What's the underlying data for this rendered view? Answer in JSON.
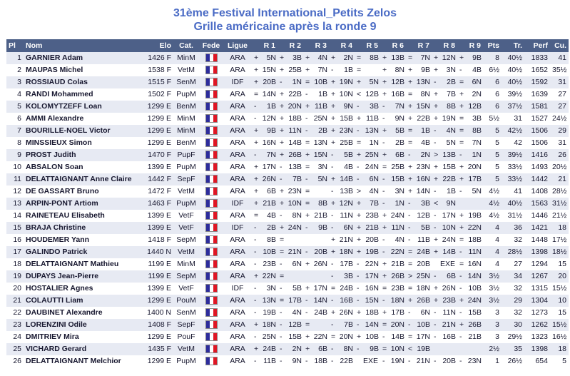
{
  "title": "31ème Festival International_Petits Zelos",
  "subtitle": "Grille américaine après la ronde 9",
  "colors": {
    "title": "#4a6bc5",
    "header_bg": "#4d6088",
    "row_alt": "#e7eaf3",
    "text": "#17172f",
    "flag_blue": "#2d2d9b",
    "flag_red": "#df1624"
  },
  "table": {
    "headers": [
      "Pl",
      "Nom",
      "Elo",
      "Cat.",
      "Fede",
      "Ligue",
      "R 1",
      "R 2",
      "R 3",
      "R 4",
      "R 5",
      "R 6",
      "R 7",
      "R 8",
      "R 9",
      "Pts",
      "Tr.",
      "Perf",
      "Cu."
    ],
    "fede_icon": "france-flag",
    "rows": [
      {
        "pl": "1",
        "nom": "GARNIER Adam",
        "elo": "1426 F",
        "cat": "MinM",
        "ligue": "ARA",
        "rounds": [
          "+5N",
          "+3B",
          "+4N",
          "+2N",
          "=8B",
          "+13B",
          "=7N",
          "+12N",
          "+9B"
        ],
        "pts": "8",
        "tr": "40½",
        "perf": "1833",
        "cu": "41"
      },
      {
        "pl": "2",
        "nom": "MAUPAS Michel",
        "elo": "1538 F",
        "cat": "VetM",
        "ligue": "ARA",
        "rounds": [
          "+15N",
          "+25B",
          "+7N",
          "-1B",
          "=",
          "+8N",
          "+9B",
          "+3N",
          "-4B"
        ],
        "pts": "6½",
        "tr": "40½",
        "perf": "1652",
        "cu": "35½"
      },
      {
        "pl": "3",
        "nom": "ROSSIAUD Colas",
        "elo": "1515 F",
        "cat": "SenM",
        "ligue": "IDF",
        "rounds": [
          "+20B",
          "-1N",
          "=10B",
          "+19N",
          "+5N",
          "+12B",
          "+13N",
          "-2B",
          "=6N"
        ],
        "pts": "6",
        "tr": "40½",
        "perf": "1592",
        "cu": "31"
      },
      {
        "pl": "4",
        "nom": "RANDI Mohammed",
        "elo": "1502 F",
        "cat": "PupM",
        "ligue": "ARA",
        "rounds": [
          "=14N",
          "+22B",
          "-1B",
          "+10N",
          "<12B",
          "+16B",
          "=8N",
          "+7B",
          "+2N"
        ],
        "pts": "6",
        "tr": "39½",
        "perf": "1639",
        "cu": "27"
      },
      {
        "pl": "5",
        "nom": "KOLOMYTZEFF Loan",
        "elo": "1299 E",
        "cat": "BenM",
        "ligue": "ARA",
        "rounds": [
          "-1B",
          "+20N",
          "+11B",
          "+9N",
          "-3B",
          "-7N",
          "+15N",
          "+8B",
          "+12B"
        ],
        "pts": "6",
        "tr": "37½",
        "perf": "1581",
        "cu": "27"
      },
      {
        "pl": "6",
        "nom": "AMMI Alexandre",
        "elo": "1299 E",
        "cat": "MinM",
        "ligue": "ARA",
        "rounds": [
          "-12N",
          "+18B",
          "-25N",
          "+15B",
          "+11B",
          "-9N",
          "+22B",
          "+19N",
          "=3B"
        ],
        "pts": "5½",
        "tr": "31",
        "perf": "1527",
        "cu": "24½"
      },
      {
        "pl": "7",
        "nom": "BOURILLE-NOEL Victor",
        "elo": "1299 E",
        "cat": "MinM",
        "ligue": "ARA",
        "rounds": [
          "+9B",
          "+11N",
          "-2B",
          "+23N",
          "-13N",
          "+5B",
          "=1B",
          "-4N",
          "=8B"
        ],
        "pts": "5",
        "tr": "42½",
        "perf": "1506",
        "cu": "29"
      },
      {
        "pl": "8",
        "nom": "MINSSIEUX Simon",
        "elo": "1299 E",
        "cat": "BenM",
        "ligue": "ARA",
        "rounds": [
          "+16N",
          "+14B",
          "=13N",
          "+25B",
          "=1N",
          "-2B",
          "=4B",
          "-5N",
          "=7N"
        ],
        "pts": "5",
        "tr": "42",
        "perf": "1506",
        "cu": "31"
      },
      {
        "pl": "9",
        "nom": "PROST Judith",
        "elo": "1470 F",
        "cat": "PupF",
        "ligue": "ARA",
        "rounds": [
          "-7N",
          "+26B",
          "+15N",
          "-5B",
          "+25N",
          "+6B",
          "-2N",
          ">13B",
          "-1N"
        ],
        "pts": "5",
        "tr": "39½",
        "perf": "1416",
        "cu": "26"
      },
      {
        "pl": "10",
        "nom": "ABSALON Soan",
        "elo": "1399 E",
        "cat": "PupM",
        "ligue": "ARA",
        "rounds": [
          "+17N",
          "-13B",
          "=3N",
          "-4B",
          "-24N",
          "=25B",
          "+23N",
          "+15B",
          "+20N"
        ],
        "pts": "5",
        "tr": "33½",
        "perf": "1493",
        "cu": "20½"
      },
      {
        "pl": "11",
        "nom": "DELATTAIGNANT Anne Claire",
        "elo": "1442 F",
        "cat": "SepF",
        "ligue": "ARA",
        "rounds": [
          "+26N",
          "-7B",
          "-5N",
          "+14B",
          "-6N",
          "-15B",
          "+16N",
          "+22B",
          "+17B"
        ],
        "pts": "5",
        "tr": "33½",
        "perf": "1442",
        "cu": "21"
      },
      {
        "pl": "12",
        "nom": "DE GASSART Bruno",
        "elo": "1472 F",
        "cat": "VetM",
        "ligue": "ARA",
        "rounds": [
          "+6B",
          "+23N",
          "=",
          "-13B",
          ">4N",
          "-3N",
          "+14N",
          "-1B",
          "-5N"
        ],
        "pts": "4½",
        "tr": "41",
        "perf": "1408",
        "cu": "28½"
      },
      {
        "pl": "13",
        "nom": "ARPIN-PONT Artiom",
        "elo": "1463 F",
        "cat": "PupM",
        "ligue": "IDF",
        "rounds": [
          "+21B",
          "+10N",
          "=8B",
          "+12N",
          "+7B",
          "-1N",
          "-3B",
          "<9N",
          ""
        ],
        "pts": "4½",
        "tr": "40½",
        "perf": "1563",
        "cu": "31½"
      },
      {
        "pl": "14",
        "nom": "RAINETEAU Elisabeth",
        "elo": "1399 E",
        "cat": "VetF",
        "ligue": "ARA",
        "rounds": [
          "=4B",
          "-8N",
          "+21B",
          "-11N",
          "+23B",
          "+24N",
          "-12B",
          "-17N",
          "+19B"
        ],
        "pts": "4½",
        "tr": "31½",
        "perf": "1446",
        "cu": "21½"
      },
      {
        "pl": "15",
        "nom": "BRAJA Christine",
        "elo": "1399 E",
        "cat": "VetF",
        "ligue": "IDF",
        "rounds": [
          "-2B",
          "+24N",
          "-9B",
          "-6N",
          "+21B",
          "+11N",
          "-5B",
          "-10N",
          "+22N"
        ],
        "pts": "4",
        "tr": "36",
        "perf": "1421",
        "cu": "18"
      },
      {
        "pl": "16",
        "nom": "HOUDEMER Yann",
        "elo": "1418 F",
        "cat": "SepM",
        "ligue": "ARA",
        "rounds": [
          "-8B",
          "=",
          "",
          "+21N",
          "+20B",
          "-4N",
          "-11B",
          "+24N",
          "=18B"
        ],
        "pts": "4",
        "tr": "32",
        "perf": "1448",
        "cu": "17½"
      },
      {
        "pl": "17",
        "nom": "GALINDO Patrick",
        "elo": "1440 N",
        "cat": "VetM",
        "ligue": "ARA",
        "rounds": [
          "-10B",
          "=21N",
          "-20B",
          "+18N",
          "+19B",
          "-22N",
          "=24B",
          "+14B",
          "-11N"
        ],
        "pts": "4",
        "tr": "28½",
        "perf": "1398",
        "cu": "18½"
      },
      {
        "pl": "18",
        "nom": "DELATTAIGNANT Mathieu",
        "elo": "1199 E",
        "cat": "MinM",
        "ligue": "ARA",
        "rounds": [
          "-23B",
          "-6N",
          "+26N",
          "-17B",
          "-22N",
          "+21B",
          "=20B",
          "EXE",
          "=16N"
        ],
        "pts": "4",
        "tr": "27",
        "perf": "1294",
        "cu": "15"
      },
      {
        "pl": "19",
        "nom": "DUPAYS Jean-Pierre",
        "elo": "1199 E",
        "cat": "SepM",
        "ligue": "ARA",
        "rounds": [
          "+22N",
          "=",
          "",
          "-3B",
          "-17N",
          "+26B",
          ">25N",
          "-6B",
          "-14N"
        ],
        "pts": "3½",
        "tr": "34",
        "perf": "1267",
        "cu": "20"
      },
      {
        "pl": "20",
        "nom": "HOSTALIER Agnes",
        "elo": "1399 E",
        "cat": "VetF",
        "ligue": "IDF",
        "rounds": [
          "-3N",
          "-5B",
          "+17N",
          "=24B",
          "-16N",
          "=23B",
          "=18N",
          "+26N",
          "-10B"
        ],
        "pts": "3½",
        "tr": "32",
        "perf": "1315",
        "cu": "15½"
      },
      {
        "pl": "21",
        "nom": "COLAUTTI Liam",
        "elo": "1299 E",
        "cat": "PouM",
        "ligue": "ARA",
        "rounds": [
          "-13N",
          "=17B",
          "-14N",
          "-16B",
          "-15N",
          "-18N",
          "+26B",
          "+23B",
          "+24N"
        ],
        "pts": "3½",
        "tr": "29",
        "perf": "1304",
        "cu": "10"
      },
      {
        "pl": "22",
        "nom": "DAUBINET Alexandre",
        "elo": "1400 N",
        "cat": "SenM",
        "ligue": "ARA",
        "rounds": [
          "-19B",
          "-4N",
          "-24B",
          "+26N",
          "+18B",
          "+17B",
          "-6N",
          "-11N",
          "-15B"
        ],
        "pts": "3",
        "tr": "32",
        "perf": "1273",
        "cu": "15"
      },
      {
        "pl": "23",
        "nom": "LORENZINI Odile",
        "elo": "1408 F",
        "cat": "SepF",
        "ligue": "ARA",
        "rounds": [
          "+18N",
          "-12B",
          "=",
          "-7B",
          "-14N",
          "=20N",
          "-10B",
          "-21N",
          "+26B"
        ],
        "pts": "3",
        "tr": "30",
        "perf": "1262",
        "cu": "15½"
      },
      {
        "pl": "24",
        "nom": "DMITRIEV Mira",
        "elo": "1299 E",
        "cat": "PouF",
        "ligue": "ARA",
        "rounds": [
          "-25N",
          "-15B",
          "+22N",
          "=20N",
          "+10B",
          "-14B",
          "=17N",
          "-16B",
          "-21B"
        ],
        "pts": "3",
        "tr": "29½",
        "perf": "1323",
        "cu": "16½"
      },
      {
        "pl": "25",
        "nom": "VICHARD Gerard",
        "elo": "1435 F",
        "cat": "VetM",
        "ligue": "ARA",
        "rounds": [
          "+24B",
          "-2N",
          "+6B",
          "-8N",
          "-9B",
          "=10N",
          "<19B",
          "",
          ""
        ],
        "pts": "2½",
        "tr": "35",
        "perf": "1398",
        "cu": "18"
      },
      {
        "pl": "26",
        "nom": "DELATTAIGNANT Melchior",
        "elo": "1299 E",
        "cat": "PupM",
        "ligue": "ARA",
        "rounds": [
          "-11B",
          "-9N",
          "-18B",
          "-22B",
          "EXE",
          "-19N",
          "-21N",
          "-20B",
          "-23N"
        ],
        "pts": "1",
        "tr": "26½",
        "perf": "654",
        "cu": "5"
      }
    ]
  }
}
